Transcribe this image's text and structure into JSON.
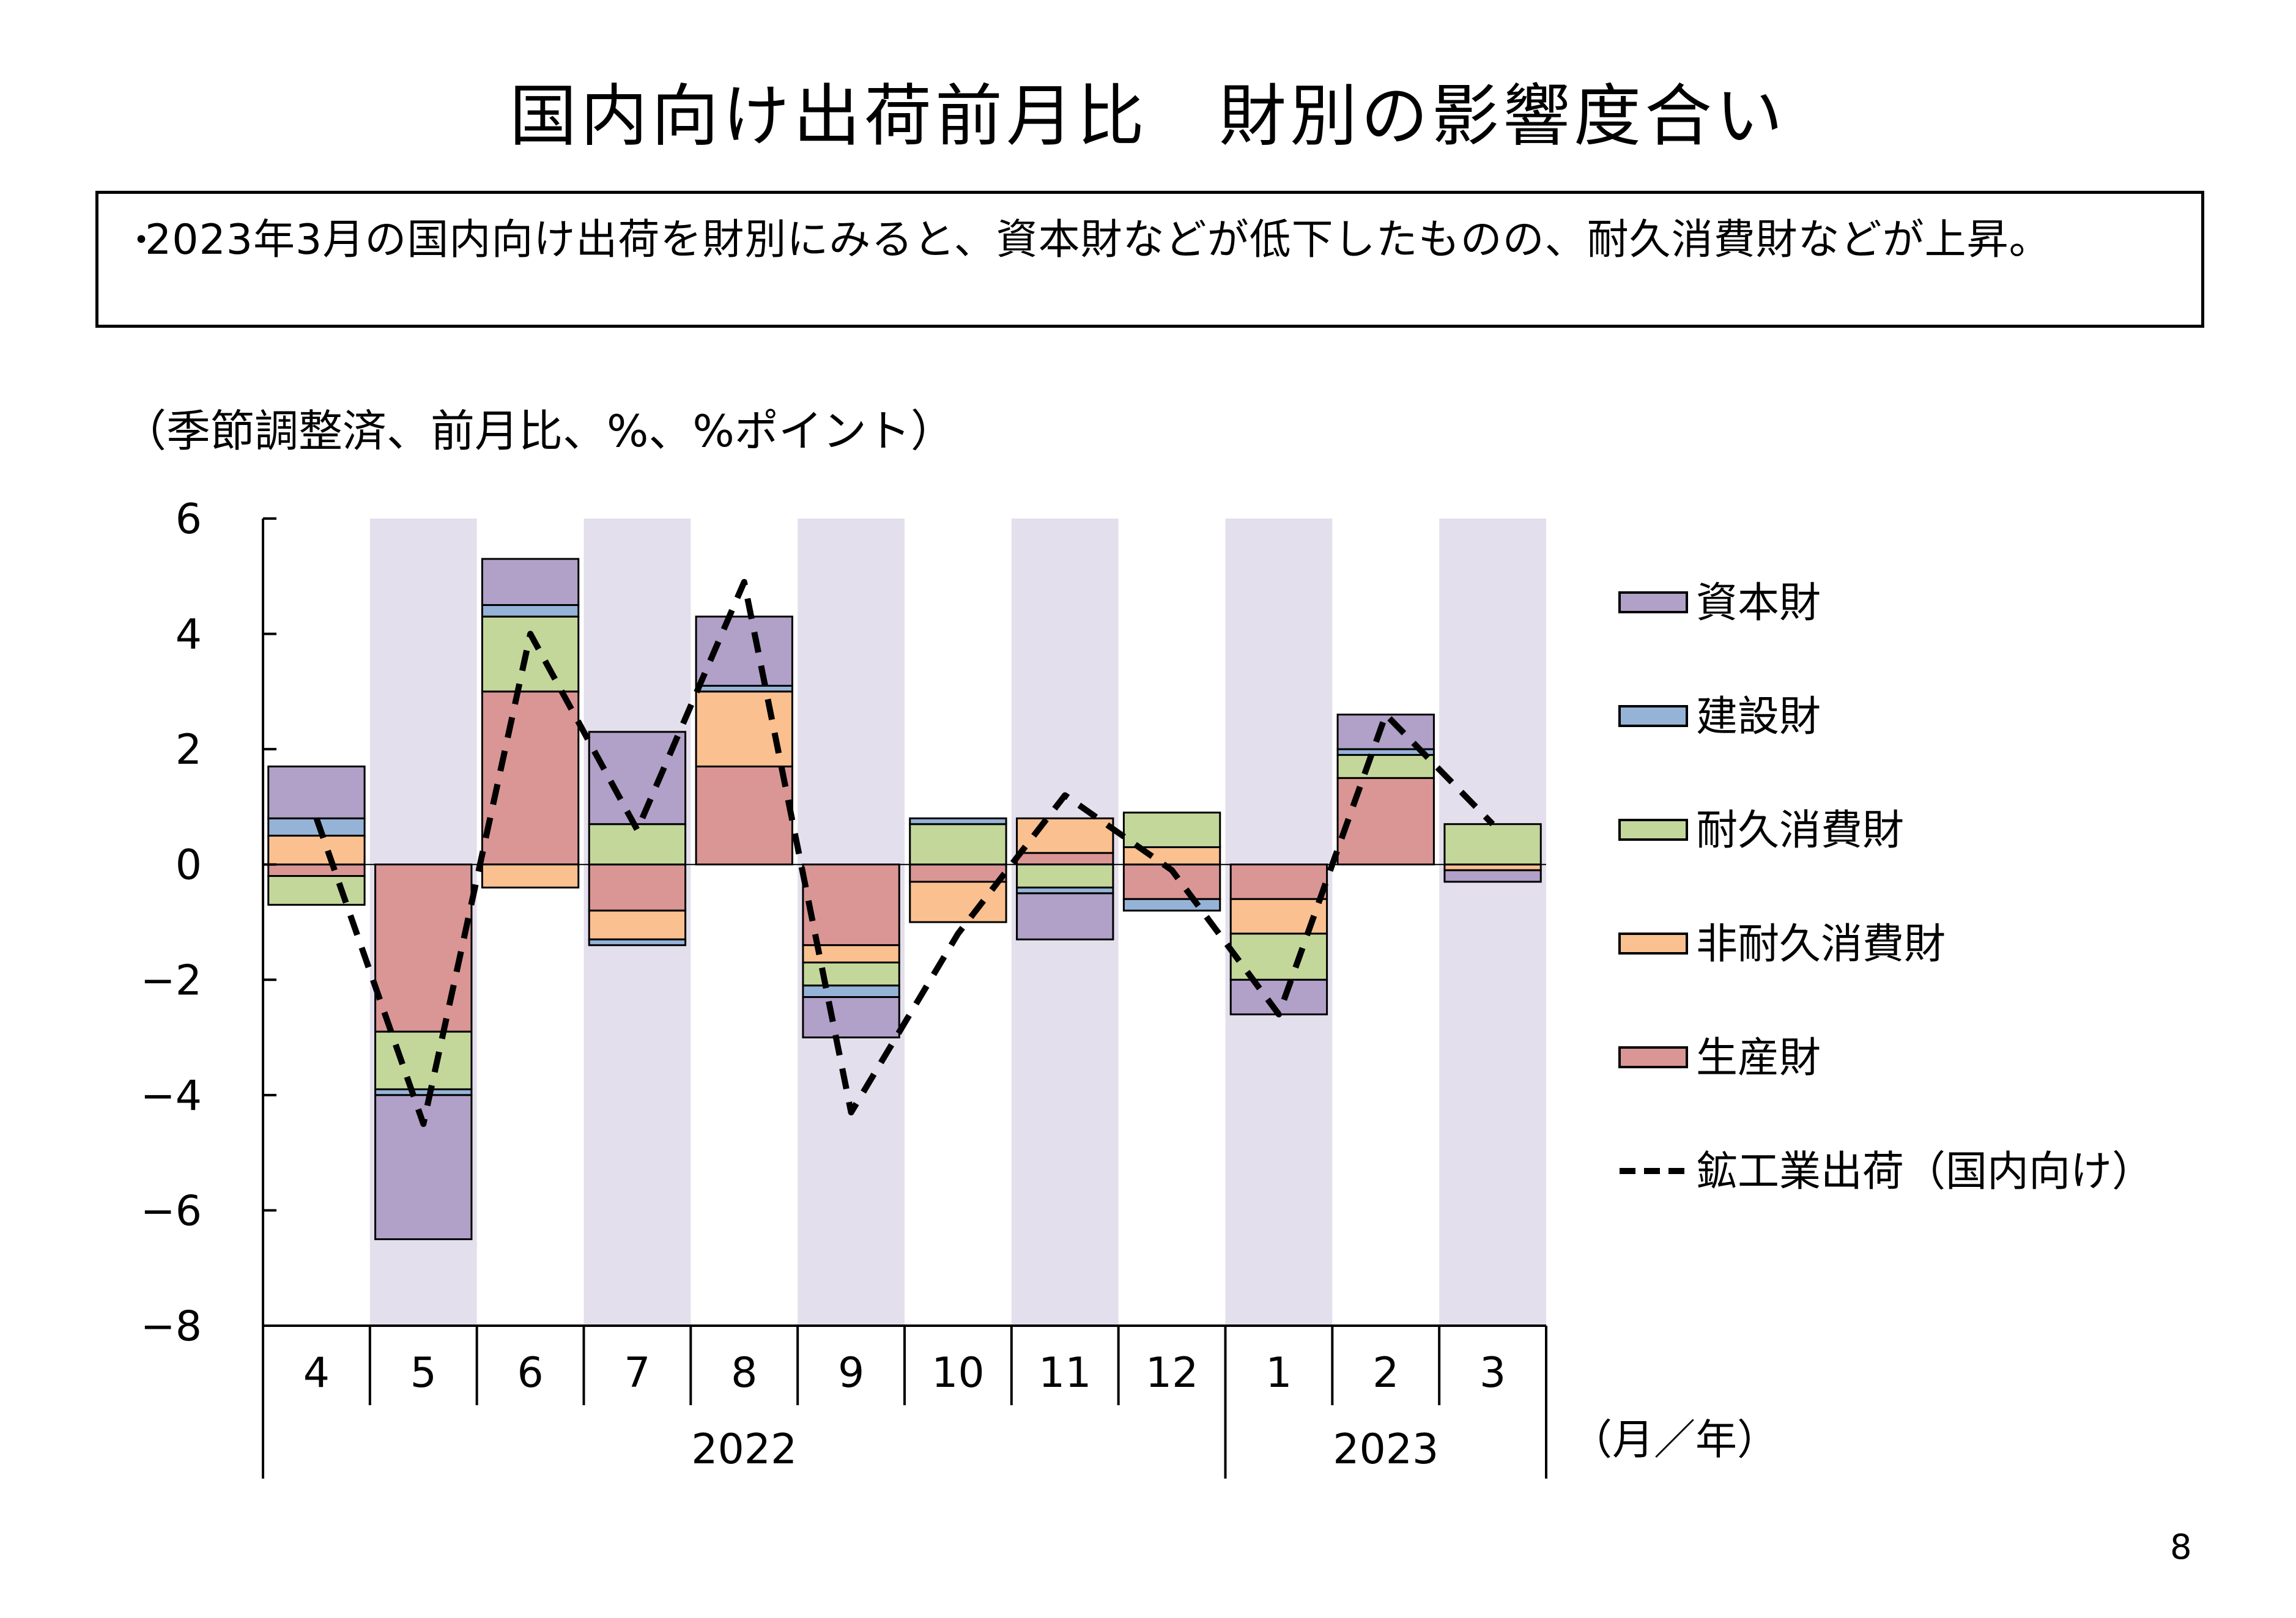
{
  "page_title": "国内向け出荷前月比　財別の影響度合い",
  "summary": {
    "bullet": "・",
    "text": "2023年3月の国内向け出荷を財別にみると、資本財などが低下したものの、耐久消費財などが上昇。"
  },
  "unit_label": "（季節調整済、前月比、%、%ポイント）",
  "page_number": "8",
  "colors": {
    "shade": "#E4DFEC",
    "capital": "#B1A0C7",
    "construction": "#95B3D7",
    "durable": "#C4D79B",
    "nondurable": "#FAC090",
    "producer": "#DA9694",
    "line": "#000000"
  },
  "chart_data": {
    "type": "bar",
    "stacked": true,
    "categories": [
      "4",
      "5",
      "6",
      "7",
      "8",
      "9",
      "10",
      "11",
      "12",
      "1",
      "2",
      "3"
    ],
    "year_labels": [
      {
        "label": "2022",
        "from": 0,
        "to": 8
      },
      {
        "label": "2023",
        "from": 9,
        "to": 11
      }
    ],
    "x_unit_label": "（月／年）",
    "shaded_categories": [
      1,
      3,
      5,
      7,
      9,
      11
    ],
    "ylim": [
      -8,
      6
    ],
    "yticks": [
      -8,
      -6,
      -4,
      -2,
      0,
      2,
      4,
      6
    ],
    "ytick_labels": [
      "−8",
      "−6",
      "−4",
      "−2",
      "0",
      "2",
      "4",
      "6"
    ],
    "legend_position": "right",
    "series": [
      {
        "name": "生産財",
        "key": "producer",
        "values": [
          -0.2,
          -2.9,
          3.0,
          -0.8,
          1.7,
          -1.4,
          -0.3,
          0.2,
          -0.6,
          -0.6,
          1.5,
          0.0
        ]
      },
      {
        "name": "非耐久消費財",
        "key": "nondurable",
        "values": [
          0.5,
          0.0,
          -0.4,
          -0.5,
          1.3,
          -0.3,
          -0.7,
          0.6,
          0.3,
          -0.6,
          0.0,
          -0.1
        ]
      },
      {
        "name": "耐久消費財",
        "key": "durable",
        "values": [
          -0.5,
          -1.0,
          1.3,
          0.7,
          0.0,
          -0.4,
          0.7,
          -0.4,
          0.6,
          -0.8,
          0.4,
          0.7
        ]
      },
      {
        "name": "建設財",
        "key": "construction",
        "values": [
          0.3,
          -0.1,
          0.2,
          -0.1,
          0.1,
          -0.2,
          0.1,
          -0.1,
          -0.2,
          0.0,
          0.1,
          0.0
        ]
      },
      {
        "name": "資本財",
        "key": "capital",
        "values": [
          0.9,
          -2.5,
          0.8,
          1.6,
          1.2,
          -0.7,
          0.0,
          -0.8,
          0.0,
          -0.6,
          0.6,
          -0.2
        ]
      }
    ],
    "line_series": {
      "name": "鉱工業出荷（国内向け）",
      "key": "line",
      "values": [
        0.8,
        -4.5,
        4.0,
        0.6,
        4.9,
        -4.3,
        -1.2,
        1.2,
        -0.1,
        -2.6,
        2.6,
        0.7
      ]
    },
    "legend_order": [
      "資本財",
      "建設財",
      "耐久消費財",
      "非耐久消費財",
      "生産財",
      "鉱工業出荷（国内向け）"
    ]
  }
}
